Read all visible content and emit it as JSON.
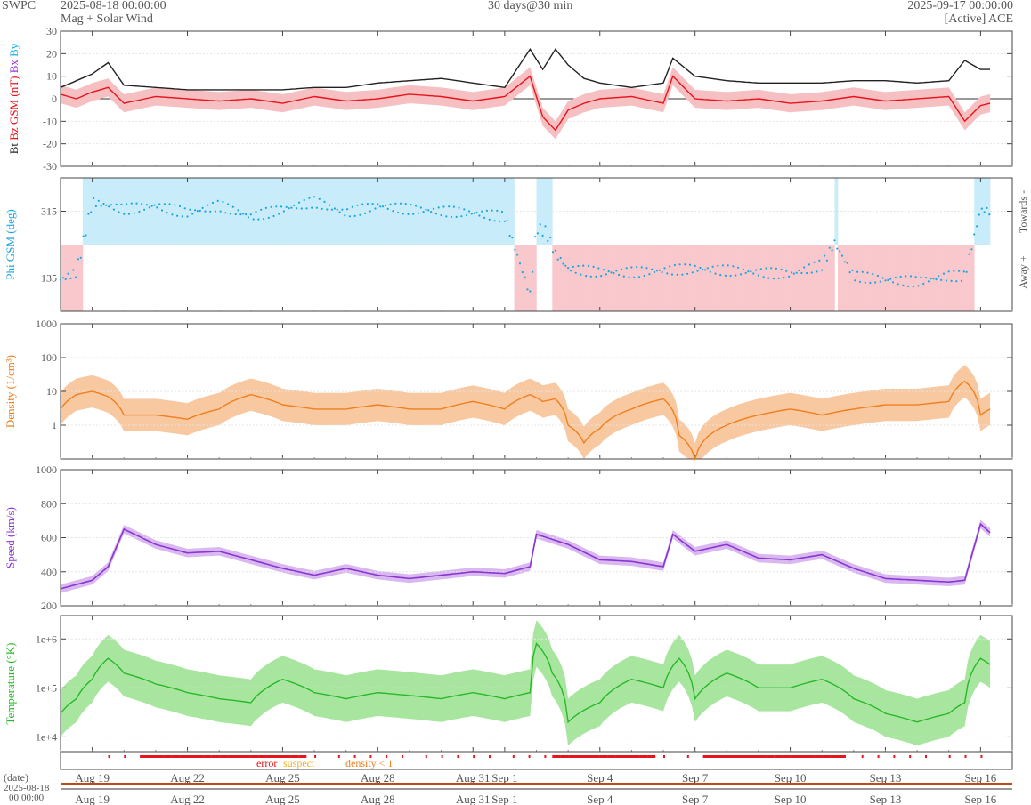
{
  "header": {
    "source": "SWPC",
    "start_time": "2025-08-18 00:00:00",
    "product": "Mag + Solar Wind",
    "span": "30 days@30 min",
    "end_time": "2025-09-17 00:00:00",
    "spacecraft": "[Active] ACE"
  },
  "colors": {
    "bt": "#222222",
    "bz": "#e8141a",
    "bx": "#9b30d9",
    "by": "#1bb3e6",
    "phi": "#1ba6e0",
    "phi_towards_fill": "#c9ecfa",
    "phi_away_fill": "#f8c8cc",
    "density": "#f07f1d",
    "density_fill": "#f8c8a0",
    "speed": "#8a35d2",
    "speed_fill": "#d9b8f0",
    "temperature": "#28b828",
    "temperature_fill": "#a8e6a0",
    "error": "#e8141a",
    "suspect": "#f0b020",
    "density_flag": "#f07f1d"
  },
  "axis": {
    "x_ticks": [
      "Aug 19",
      "Aug 22",
      "Aug 25",
      "Aug 28",
      "Aug 31",
      "Sep 1",
      "Sep 4",
      "Sep 7",
      "Sep 10",
      "Sep 13",
      "Sep 16"
    ],
    "date_label": "(date)",
    "date_start_line1": "2025-08-18",
    "date_start_line2": "00:00:00"
  },
  "flags": {
    "error": "error",
    "suspect": "suspect",
    "density": "density < 1"
  },
  "chart_data": [
    {
      "type": "line",
      "id": "mag",
      "ylabel_parts": [
        "Bt",
        "Bz GSM (nT)",
        "Bx",
        "By"
      ],
      "yticks": [
        "30",
        "20",
        "10",
        "0",
        "-10",
        "-20",
        "-30"
      ],
      "ylim": [
        -30,
        30
      ],
      "series": [
        {
          "name": "Bt",
          "x": [
            0,
            0.5,
            1,
            1.5,
            2,
            3,
            4,
            5,
            6,
            7,
            8,
            9,
            10,
            11,
            12,
            13,
            14,
            14.8,
            15.2,
            15.6,
            16,
            16.5,
            17,
            18,
            19,
            19.3,
            20,
            21,
            22,
            23,
            24,
            25,
            26,
            27,
            28,
            28.5,
            29,
            29.3
          ],
          "values": [
            5,
            8,
            11,
            16,
            6,
            5,
            4,
            4,
            4,
            4,
            5,
            5,
            7,
            8,
            9,
            7,
            5,
            22,
            13,
            22,
            15,
            9,
            7,
            5,
            7,
            18,
            10,
            8,
            7,
            7,
            7,
            8,
            8,
            7,
            8,
            17,
            13,
            13
          ]
        },
        {
          "name": "Bz GSM",
          "x": [
            0,
            0.5,
            1,
            1.5,
            2,
            3,
            4,
            5,
            6,
            7,
            8,
            9,
            10,
            11,
            12,
            13,
            14,
            14.8,
            15.2,
            15.6,
            16,
            16.5,
            17,
            18,
            19,
            19.3,
            20,
            21,
            22,
            23,
            24,
            25,
            26,
            27,
            28,
            28.5,
            29,
            29.3
          ],
          "values": [
            2,
            0,
            3,
            5,
            -2,
            1,
            0,
            -1,
            0,
            -2,
            1,
            -1,
            0,
            2,
            1,
            -1,
            1,
            10,
            -8,
            -14,
            -5,
            -2,
            0,
            1,
            -2,
            10,
            0,
            -1,
            0,
            -2,
            -1,
            1,
            -1,
            0,
            1,
            -10,
            -3,
            -2
          ]
        }
      ]
    },
    {
      "type": "scatter",
      "id": "phi",
      "ylabel": "Phi GSM (deg)",
      "right_labels": [
        "Towards -",
        "Away +"
      ],
      "yticks": [
        "315",
        "135"
      ],
      "ylim": [
        45,
        405
      ],
      "series": [
        {
          "name": "Phi GSM",
          "x": [
            0,
            0.5,
            1,
            2,
            3,
            4,
            5,
            6,
            7,
            8,
            9,
            10,
            11,
            12,
            13,
            14,
            14.8,
            15,
            15.3,
            15.6,
            16,
            17,
            18,
            19,
            20,
            21,
            22,
            23,
            24,
            24.4,
            25,
            26,
            27,
            28,
            28.5,
            29,
            29.3
          ],
          "values": [
            130,
            150,
            340,
            320,
            330,
            310,
            330,
            300,
            320,
            340,
            310,
            330,
            320,
            315,
            310,
            300,
            90,
            270,
            260,
            200,
            160,
            150,
            150,
            155,
            160,
            155,
            150,
            145,
            170,
            230,
            140,
            130,
            125,
            140,
            140,
            320,
            315
          ]
        }
      ]
    },
    {
      "type": "line",
      "id": "density",
      "ylabel": "Density (1/cm³)",
      "yscale": "log",
      "yticks": [
        "1000",
        "100",
        "10",
        "1"
      ],
      "ylim": [
        0.1,
        1000
      ],
      "series": [
        {
          "name": "Density",
          "x": [
            0,
            0.5,
            1,
            1.5,
            2,
            3,
            4,
            5,
            6,
            7,
            8,
            9,
            10,
            11,
            12,
            13,
            14,
            14.8,
            15.2,
            15.6,
            16,
            16.5,
            17,
            18,
            19,
            19.5,
            20,
            21,
            22,
            23,
            24,
            25,
            26,
            27,
            28,
            28.5,
            29,
            29.3
          ],
          "values": [
            3,
            8,
            10,
            7,
            2,
            2,
            1.5,
            3,
            8,
            4,
            3,
            3,
            4,
            3,
            3,
            5,
            3,
            8,
            5,
            6,
            1,
            0.3,
            0.8,
            3,
            6,
            0.5,
            0.1,
            1,
            2,
            3,
            2,
            3,
            4,
            4,
            5,
            20,
            2,
            3
          ]
        }
      ]
    },
    {
      "type": "line",
      "id": "speed",
      "ylabel": "Speed (km/s)",
      "yticks": [
        "1000",
        "800",
        "600",
        "400",
        "200"
      ],
      "ylim": [
        200,
        1000
      ],
      "series": [
        {
          "name": "Speed",
          "x": [
            0,
            1,
            1.5,
            2,
            3,
            4,
            5,
            6,
            7,
            8,
            9,
            10,
            11,
            12,
            13,
            14,
            14.8,
            15,
            16,
            17,
            18,
            19,
            19.3,
            20,
            21,
            22,
            23,
            24,
            25,
            26,
            27,
            28,
            28.5,
            29,
            29.3
          ],
          "values": [
            300,
            350,
            430,
            650,
            560,
            510,
            520,
            470,
            420,
            380,
            420,
            380,
            360,
            380,
            400,
            390,
            430,
            620,
            560,
            470,
            460,
            430,
            620,
            520,
            560,
            480,
            470,
            500,
            420,
            360,
            350,
            340,
            350,
            680,
            630
          ]
        }
      ]
    },
    {
      "type": "line",
      "id": "temperature",
      "ylabel": "Temperature (°K)",
      "yscale": "log",
      "yticks": [
        "1e+6",
        "1e+5",
        "1e+4"
      ],
      "ylim": [
        5000,
        3000000
      ],
      "series": [
        {
          "name": "Temperature",
          "x": [
            0,
            0.5,
            1,
            1.5,
            2,
            3,
            4,
            5,
            6,
            7,
            8,
            9,
            10,
            11,
            12,
            13,
            14,
            14.8,
            15,
            15.5,
            16,
            17,
            18,
            19,
            19.5,
            20,
            21,
            22,
            23,
            24,
            25,
            26,
            27,
            28,
            28.5,
            29,
            29.3
          ],
          "values": [
            30000,
            60000,
            150000,
            400000,
            200000,
            120000,
            80000,
            60000,
            50000,
            150000,
            80000,
            60000,
            80000,
            70000,
            60000,
            80000,
            60000,
            80000,
            800000,
            200000,
            20000,
            50000,
            150000,
            100000,
            400000,
            60000,
            200000,
            100000,
            100000,
            150000,
            60000,
            30000,
            20000,
            30000,
            50000,
            400000,
            300000
          ]
        }
      ]
    }
  ]
}
